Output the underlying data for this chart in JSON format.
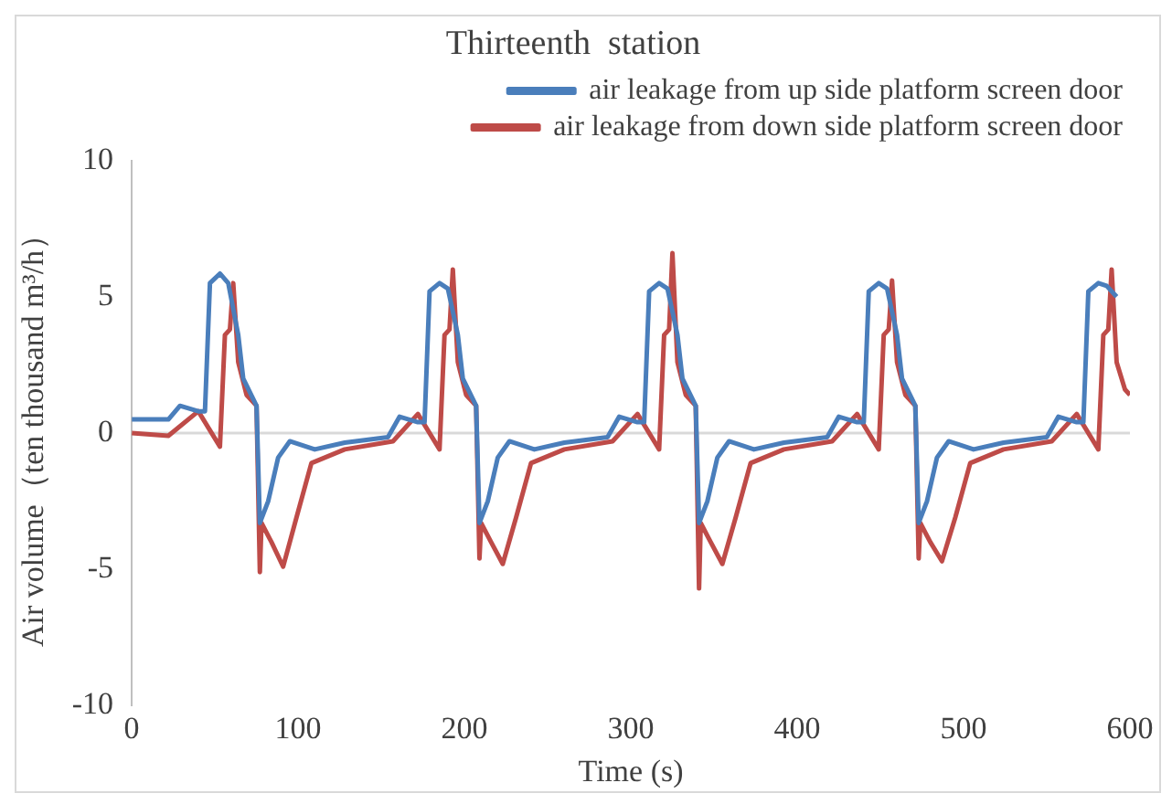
{
  "chart_data": {
    "type": "line",
    "title": "Thirteenth  station",
    "xlabel": "Time (s)",
    "ylabel": "Air volume（ten thousand m³/h）",
    "xlim": [
      0,
      600
    ],
    "xticks": [
      0,
      100,
      200,
      300,
      400,
      500,
      600
    ],
    "ylim": [
      -10,
      10
    ],
    "yticks": [
      -10,
      -5,
      0,
      5,
      10
    ],
    "grid": false,
    "legend": "top",
    "marker": "none",
    "line_style": "solid",
    "ref_lines": [
      {
        "axis": "y",
        "value": 0,
        "color": "#d9d9d9"
      }
    ],
    "series": [
      {
        "name": "air leakage from up side platform screen door",
        "color": "#4a7ebb",
        "x": [
          0,
          22,
          29,
          40,
          44,
          47,
          53,
          58,
          64,
          67,
          75,
          77,
          82,
          88,
          95,
          110,
          128,
          154,
          161,
          172,
          176,
          179,
          185,
          190,
          196,
          199,
          207,
          209,
          214,
          220,
          227,
          242,
          260,
          286,
          293,
          304,
          308,
          311,
          317,
          322,
          328,
          331,
          339,
          341,
          346,
          352,
          359,
          374,
          392,
          418,
          425,
          436,
          440,
          443,
          449,
          454,
          460,
          463,
          471,
          473,
          478,
          484,
          491,
          506,
          524,
          550,
          557,
          568,
          572,
          575,
          581,
          586,
          592
        ],
        "values": [
          0.5,
          0.5,
          1.0,
          0.8,
          0.8,
          5.5,
          5.85,
          5.5,
          3.6,
          2.0,
          1.0,
          -3.3,
          -2.5,
          -0.9,
          -0.3,
          -0.6,
          -0.35,
          -0.15,
          0.6,
          0.4,
          0.4,
          5.2,
          5.5,
          5.3,
          3.6,
          2.0,
          1.0,
          -3.3,
          -2.5,
          -0.9,
          -0.3,
          -0.6,
          -0.35,
          -0.15,
          0.6,
          0.4,
          0.4,
          5.2,
          5.5,
          5.3,
          3.6,
          2.0,
          1.0,
          -3.3,
          -2.5,
          -0.9,
          -0.3,
          -0.6,
          -0.35,
          -0.15,
          0.6,
          0.4,
          0.4,
          5.2,
          5.5,
          5.3,
          3.6,
          2.0,
          1.0,
          -3.3,
          -2.5,
          -0.9,
          -0.3,
          -0.6,
          -0.35,
          -0.15,
          0.6,
          0.4,
          0.4,
          5.2,
          5.5,
          5.4,
          5.0
        ]
      },
      {
        "name": "air leakage from down side platform screen door",
        "color": "#be4b48",
        "x": [
          0,
          22,
          40,
          53,
          56,
          59,
          61,
          64,
          69,
          75,
          77,
          78,
          84,
          91,
          99,
          108,
          128,
          157,
          172,
          185,
          188,
          191,
          193,
          196,
          201,
          207,
          209,
          210,
          216,
          223,
          231,
          240,
          260,
          289,
          304,
          317,
          320,
          323,
          325,
          328,
          333,
          339,
          341,
          342,
          348,
          355,
          363,
          372,
          392,
          421,
          436,
          449,
          452,
          455,
          457,
          460,
          465,
          471,
          473,
          474,
          480,
          487,
          495,
          504,
          524,
          553,
          568,
          581,
          584,
          587,
          589,
          592,
          597,
          600
        ],
        "values": [
          0,
          -0.1,
          0.8,
          -0.5,
          3.6,
          3.8,
          5.5,
          2.6,
          1.4,
          1.0,
          -5.1,
          -3.3,
          -4.0,
          -4.9,
          -3.1,
          -1.1,
          -0.6,
          -0.3,
          0.7,
          -0.6,
          3.6,
          3.8,
          6.0,
          2.6,
          1.4,
          1.0,
          -4.6,
          -3.3,
          -4.0,
          -4.8,
          -3.1,
          -1.1,
          -0.6,
          -0.3,
          0.7,
          -0.6,
          3.6,
          3.8,
          6.6,
          2.6,
          1.4,
          1.0,
          -5.7,
          -3.3,
          -4.0,
          -4.8,
          -3.1,
          -1.1,
          -0.6,
          -0.3,
          0.7,
          -0.6,
          3.6,
          3.8,
          5.6,
          2.6,
          1.4,
          1.0,
          -4.6,
          -3.3,
          -4.0,
          -4.7,
          -3.1,
          -1.1,
          -0.6,
          -0.3,
          0.7,
          -0.6,
          3.6,
          3.8,
          6.0,
          2.6,
          1.6,
          1.4
        ]
      }
    ]
  }
}
